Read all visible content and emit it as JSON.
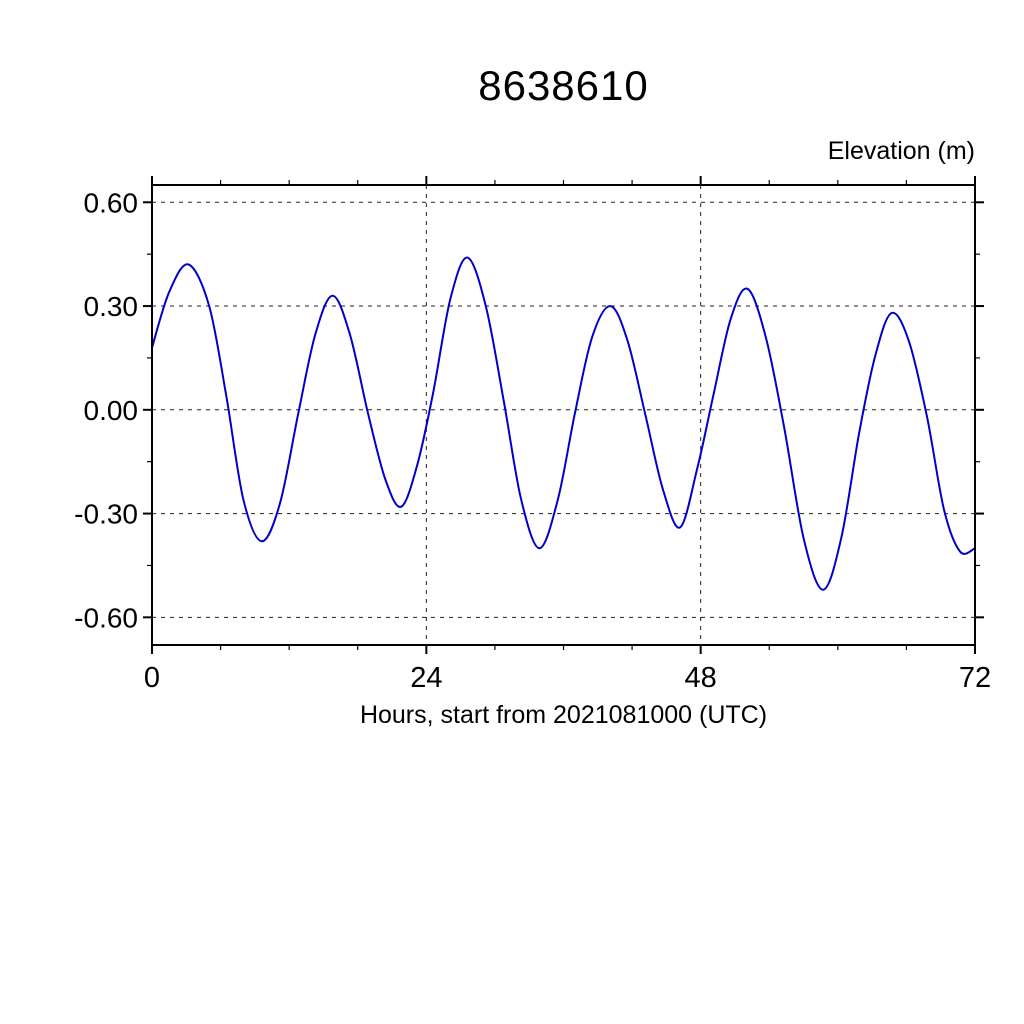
{
  "page": {
    "background": "#ffffff"
  },
  "chart_data": {
    "type": "line",
    "title": "8638610",
    "right_axis_label": "Elevation (m)",
    "xlabel": "Hours, start from 2021081000 (UTC)",
    "xlim": [
      0,
      72
    ],
    "ylim": [
      -0.68,
      0.65
    ],
    "x_ticks": [
      {
        "label": "0",
        "value": 0
      },
      {
        "label": "24",
        "value": 24
      },
      {
        "label": "48",
        "value": 48
      },
      {
        "label": "72",
        "value": 72
      }
    ],
    "y_ticks": [
      {
        "label": "0.60",
        "value": 0.6
      },
      {
        "label": "0.30",
        "value": 0.3
      },
      {
        "label": "0.00",
        "value": 0.0
      },
      {
        "label": "-0.30",
        "value": -0.3
      },
      {
        "label": "-0.60",
        "value": -0.6
      }
    ],
    "x_minor_ticks": [
      6,
      12,
      18,
      30,
      36,
      42,
      54,
      60,
      66
    ],
    "y_minor_ticks": [
      0.45,
      0.15,
      -0.15,
      -0.45
    ],
    "grid_x_values": [
      24,
      48
    ],
    "grid_y_values": [
      0.6,
      0.3,
      0.0,
      -0.3,
      -0.6
    ],
    "grid_on": true,
    "legend": "none",
    "colors": {
      "line": "#0000cd",
      "axis": "#000000",
      "grid": "#222222",
      "text": "#000000"
    },
    "series": [
      {
        "name": "elevation",
        "points": [
          [
            0.0,
            0.18
          ],
          [
            1.5,
            0.34
          ],
          [
            3.2,
            0.42
          ],
          [
            5.0,
            0.3
          ],
          [
            6.5,
            0.04
          ],
          [
            8.0,
            -0.26
          ],
          [
            9.6,
            -0.38
          ],
          [
            11.2,
            -0.27
          ],
          [
            12.8,
            -0.01
          ],
          [
            14.3,
            0.22
          ],
          [
            15.8,
            0.33
          ],
          [
            17.3,
            0.22
          ],
          [
            18.9,
            -0.01
          ],
          [
            20.4,
            -0.2
          ],
          [
            21.8,
            -0.28
          ],
          [
            23.2,
            -0.16
          ],
          [
            24.6,
            0.05
          ],
          [
            26.1,
            0.32
          ],
          [
            27.6,
            0.44
          ],
          [
            29.2,
            0.3
          ],
          [
            30.8,
            0.02
          ],
          [
            32.3,
            -0.26
          ],
          [
            33.9,
            -0.4
          ],
          [
            35.5,
            -0.26
          ],
          [
            37.0,
            -0.01
          ],
          [
            38.5,
            0.21
          ],
          [
            40.1,
            0.3
          ],
          [
            41.6,
            0.2
          ],
          [
            43.2,
            -0.02
          ],
          [
            44.7,
            -0.23
          ],
          [
            46.2,
            -0.34
          ],
          [
            47.7,
            -0.17
          ],
          [
            49.1,
            0.04
          ],
          [
            50.6,
            0.26
          ],
          [
            52.1,
            0.35
          ],
          [
            53.7,
            0.21
          ],
          [
            55.3,
            -0.05
          ],
          [
            57.0,
            -0.37
          ],
          [
            58.7,
            -0.52
          ],
          [
            60.3,
            -0.37
          ],
          [
            61.9,
            -0.06
          ],
          [
            63.3,
            0.16
          ],
          [
            64.7,
            0.28
          ],
          [
            66.2,
            0.2
          ],
          [
            67.8,
            -0.02
          ],
          [
            69.3,
            -0.29
          ],
          [
            70.7,
            -0.41
          ],
          [
            72.0,
            -0.4
          ]
        ]
      }
    ]
  }
}
